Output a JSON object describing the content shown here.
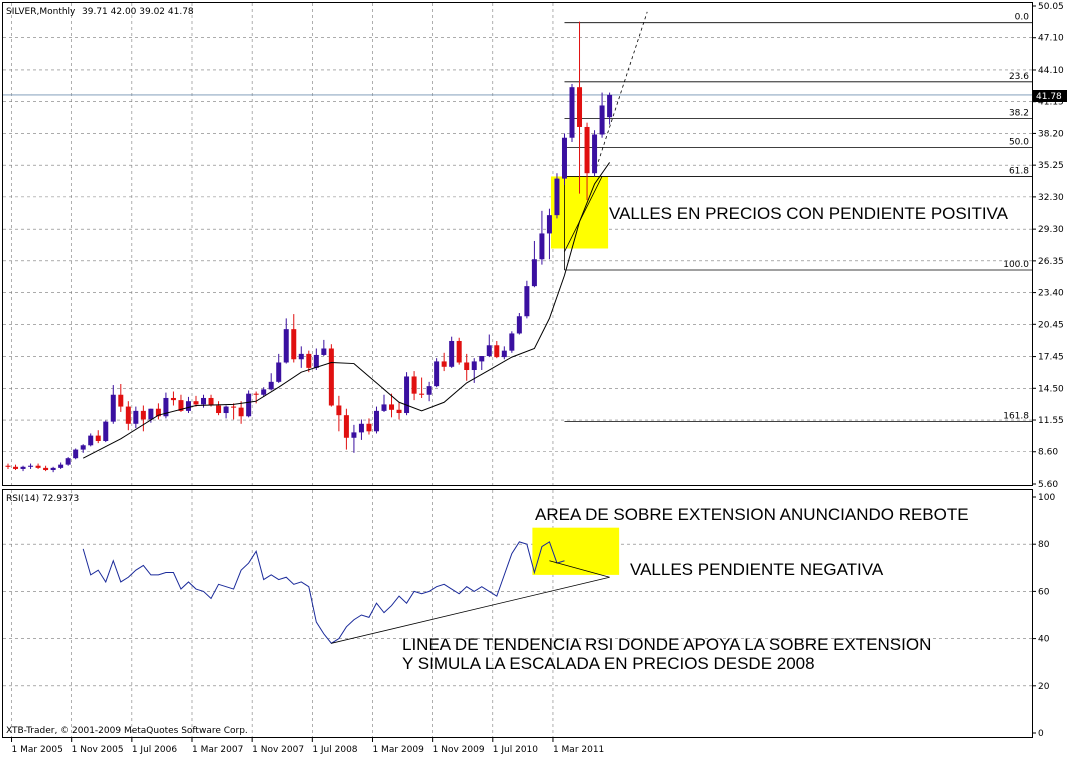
{
  "colors": {
    "background": "#ffffff",
    "grid": "#7a7a7a",
    "bull_candle": "#3a10a0",
    "bear_candle": "#e01010",
    "ma_line": "#000000",
    "rsi_line": "#1a2a9a",
    "highlight": "#ffff00",
    "price_line": "#7090b0"
  },
  "header": {
    "symbol": "SILVER,Monthly",
    "ohlc": "39.71 42.00 39.02 41.78"
  },
  "price_axis": {
    "ticks": [
      "50.05",
      "47.10",
      "44.10",
      "41.15",
      "38.20",
      "35.25",
      "32.30",
      "29.30",
      "26.35",
      "23.40",
      "20.45",
      "17.45",
      "14.50",
      "11.55",
      "8.60",
      "5.60"
    ],
    "current_price_label": "41.78"
  },
  "fib_levels": [
    {
      "label": "0.0",
      "price": 48.5
    },
    {
      "label": "23.6",
      "price": 43.0
    },
    {
      "label": "38.2",
      "price": 39.6
    },
    {
      "label": "50.0",
      "price": 36.9
    },
    {
      "label": "61.8",
      "price": 34.2
    },
    {
      "label": "100.0",
      "price": 25.5
    },
    {
      "label": "161.8",
      "price": 11.4
    }
  ],
  "annotations": {
    "price_note": "VALLES EN PRECIOS CON PENDIENTE POSITIVA",
    "rsi_note_1": "AREA DE SOBRE EXTENSION ANUNCIANDO REBOTE",
    "rsi_note_2": "VALLES PENDIENTE NEGATIVA",
    "rsi_note_3_line1": "LINEA DE TENDENCIA RSI DONDE APOYA LA SOBRE EXTENSION",
    "rsi_note_3_line2": "Y SIMULA LA ESCALADA EN PRECIOS DESDE 2008"
  },
  "rsi_panel": {
    "label": "RSI(14) 72.9373",
    "ticks": [
      "100",
      "80",
      "60",
      "40",
      "20",
      "0"
    ]
  },
  "time_axis": {
    "labels": [
      "1 Mar 2005",
      "1 Nov 2005",
      "1 Jul 2006",
      "1 Mar 2007",
      "1 Nov 2007",
      "1 Jul 2008",
      "1 Mar 2009",
      "1 Nov 2009",
      "1 Jul 2010",
      "1 Mar 2011"
    ]
  },
  "copyright": "XTB-Trader, © 2001-2009 MetaQuotes Software Corp.",
  "chart_data": [
    {
      "type": "candlestick",
      "title": "SILVER,Monthly",
      "x_start": "2005-02",
      "interval": "month",
      "ylim": [
        5.6,
        50.05
      ],
      "grid": true,
      "candles": [
        [
          7.3,
          7.5,
          7.0,
          7.2
        ],
        [
          7.2,
          7.4,
          6.9,
          7.0
        ],
        [
          7.0,
          7.3,
          6.8,
          7.2
        ],
        [
          7.2,
          7.5,
          7.0,
          7.3
        ],
        [
          7.3,
          7.5,
          7.0,
          7.1
        ],
        [
          7.1,
          7.3,
          6.8,
          6.9
        ],
        [
          6.9,
          7.2,
          6.7,
          7.1
        ],
        [
          7.1,
          7.6,
          7.0,
          7.4
        ],
        [
          7.4,
          8.1,
          7.3,
          8.0
        ],
        [
          8.0,
          8.9,
          7.9,
          8.8
        ],
        [
          8.8,
          9.3,
          8.5,
          9.2
        ],
        [
          9.2,
          10.3,
          9.1,
          10.1
        ],
        [
          10.1,
          10.6,
          9.4,
          9.6
        ],
        [
          9.6,
          11.5,
          9.5,
          11.4
        ],
        [
          11.4,
          14.8,
          11.2,
          13.9
        ],
        [
          13.9,
          14.9,
          12.3,
          12.8
        ],
        [
          12.8,
          13.3,
          10.6,
          11.2
        ],
        [
          11.2,
          12.8,
          10.8,
          12.4
        ],
        [
          12.4,
          12.9,
          10.5,
          11.6
        ],
        [
          11.6,
          12.6,
          11.3,
          12.6
        ],
        [
          12.6,
          13.1,
          11.6,
          11.9
        ],
        [
          11.9,
          14.1,
          11.7,
          13.6
        ],
        [
          13.6,
          14.2,
          12.9,
          13.4
        ],
        [
          13.4,
          13.9,
          12.3,
          12.4
        ],
        [
          12.4,
          13.7,
          12.2,
          13.3
        ],
        [
          13.3,
          13.8,
          12.8,
          13.0
        ],
        [
          13.0,
          13.9,
          12.7,
          13.6
        ],
        [
          13.6,
          13.9,
          12.8,
          12.9
        ],
        [
          12.9,
          13.3,
          12.0,
          12.2
        ],
        [
          12.2,
          12.9,
          11.7,
          12.8
        ],
        [
          12.8,
          13.1,
          11.6,
          12.7
        ],
        [
          12.7,
          13.3,
          11.2,
          11.9
        ],
        [
          11.9,
          14.3,
          11.8,
          14.0
        ],
        [
          14.0,
          14.2,
          13.1,
          13.9
        ],
        [
          13.9,
          14.6,
          13.7,
          14.4
        ],
        [
          14.4,
          15.9,
          14.3,
          15.1
        ],
        [
          15.1,
          17.7,
          15.0,
          16.9
        ],
        [
          16.9,
          21.0,
          16.8,
          20.0
        ],
        [
          20.0,
          21.4,
          16.9,
          17.2
        ],
        [
          17.2,
          18.4,
          16.4,
          17.7
        ],
        [
          17.7,
          18.0,
          16.0,
          16.4
        ],
        [
          16.4,
          18.2,
          16.2,
          17.6
        ],
        [
          17.6,
          19.0,
          17.5,
          18.2
        ],
        [
          18.2,
          18.6,
          12.8,
          12.9
        ],
        [
          12.9,
          13.8,
          10.5,
          12.0
        ],
        [
          12.0,
          12.6,
          8.8,
          9.9
        ],
        [
          9.9,
          11.1,
          8.5,
          10.4
        ],
        [
          10.4,
          11.6,
          9.7,
          11.2
        ],
        [
          11.2,
          11.7,
          10.2,
          10.5
        ],
        [
          10.5,
          12.8,
          10.3,
          12.4
        ],
        [
          12.4,
          13.9,
          12.3,
          13.0
        ],
        [
          13.0,
          14.0,
          11.8,
          12.5
        ],
        [
          12.5,
          13.2,
          11.6,
          12.2
        ],
        [
          12.2,
          16.0,
          12.0,
          15.6
        ],
        [
          15.6,
          16.1,
          13.4,
          14.0
        ],
        [
          14.0,
          15.5,
          13.6,
          13.9
        ],
        [
          13.9,
          15.1,
          13.3,
          14.7
        ],
        [
          14.7,
          17.3,
          14.6,
          17.0
        ],
        [
          17.0,
          17.8,
          16.1,
          16.5
        ],
        [
          16.5,
          19.3,
          16.4,
          18.9
        ],
        [
          18.9,
          19.2,
          16.7,
          16.9
        ],
        [
          16.9,
          17.7,
          15.2,
          16.2
        ],
        [
          16.2,
          17.3,
          15.0,
          17.0
        ],
        [
          17.0,
          17.5,
          16.2,
          17.5
        ],
        [
          17.5,
          19.5,
          17.4,
          18.5
        ],
        [
          18.5,
          18.9,
          17.3,
          17.4
        ],
        [
          17.4,
          18.4,
          17.2,
          18.0
        ],
        [
          18.0,
          19.8,
          17.8,
          19.6
        ],
        [
          19.6,
          21.5,
          19.5,
          21.2
        ],
        [
          21.2,
          24.5,
          21.0,
          24.0
        ],
        [
          24.0,
          28.2,
          23.9,
          26.5
        ],
        [
          26.5,
          31.0,
          26.0,
          28.9
        ],
        [
          28.9,
          31.2,
          26.5,
          30.6
        ],
        [
          30.6,
          34.5,
          30.3,
          34.0
        ],
        [
          34.0,
          38.2,
          33.4,
          37.8
        ],
        [
          37.8,
          42.8,
          37.4,
          42.5
        ],
        [
          42.5,
          48.6,
          32.6,
          38.8
        ],
        [
          38.8,
          39.2,
          32.0,
          34.5
        ],
        [
          34.5,
          38.5,
          34.2,
          38.1
        ],
        [
          38.1,
          42.0,
          37.8,
          40.8
        ],
        [
          39.71,
          42.0,
          39.02,
          41.78
        ]
      ],
      "moving_average": [
        [
          10,
          8.0
        ],
        [
          15,
          9.8
        ],
        [
          20,
          12.0
        ],
        [
          25,
          12.9
        ],
        [
          30,
          13.0
        ],
        [
          33,
          13.3
        ],
        [
          36,
          14.6
        ],
        [
          39,
          16.0
        ],
        [
          43,
          16.9
        ],
        [
          46,
          16.8
        ],
        [
          49,
          15.0
        ],
        [
          52,
          13.2
        ],
        [
          55,
          12.4
        ],
        [
          58,
          13.2
        ],
        [
          61,
          15.0
        ],
        [
          64,
          16.2
        ],
        [
          67,
          17.4
        ],
        [
          70,
          18.2
        ],
        [
          72,
          21.0
        ],
        [
          74,
          25.0
        ],
        [
          76,
          30.0
        ],
        [
          78,
          33.5
        ],
        [
          80,
          35.5
        ]
      ],
      "fib_projection_line": [
        [
          78,
          34.5
        ],
        [
          85,
          49.5
        ]
      ]
    },
    {
      "type": "line",
      "title": "RSI(14) 72.9373",
      "ylim": [
        0,
        100
      ],
      "ticks": [
        20,
        40,
        60,
        80
      ],
      "x_start_index": 10,
      "values": [
        78,
        67,
        69,
        64,
        73,
        64,
        66,
        69,
        71,
        67,
        67,
        68,
        68,
        61,
        64,
        61,
        60,
        57,
        63,
        62,
        61,
        69,
        72,
        77,
        65,
        67,
        65,
        66,
        63,
        64,
        62,
        47,
        42,
        38,
        40,
        45,
        48,
        50,
        49,
        55,
        51,
        54,
        58,
        55,
        60,
        59,
        60,
        62,
        63,
        61,
        59,
        62,
        60,
        62,
        60,
        58,
        67,
        76,
        81,
        80,
        68,
        79,
        81,
        72,
        73
      ]
    }
  ]
}
